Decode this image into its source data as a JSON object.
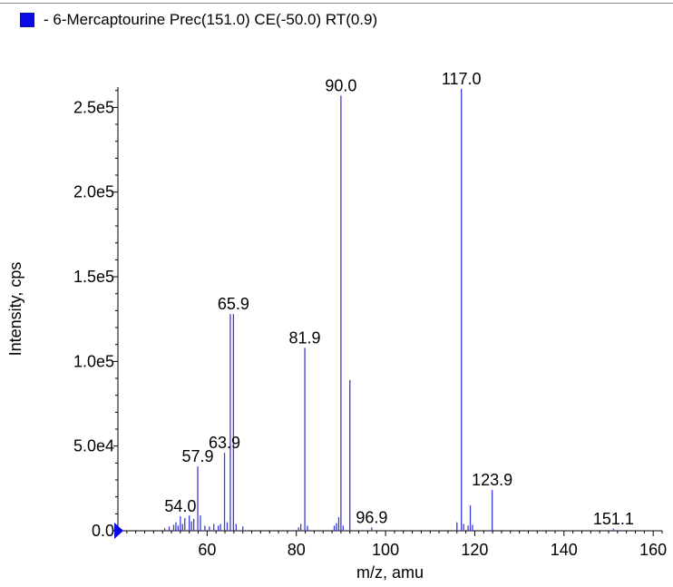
{
  "legend": {
    "label": "- 6-Mercaptourine Prec(151.0) CE(-50.0) RT(0.9)",
    "swatch_color": "#0a0ae6"
  },
  "colors": {
    "series": "#3a3ad8",
    "axis": "#000000",
    "marker": "#0a0ae6"
  },
  "chart_data": {
    "type": "bar",
    "title": "",
    "xlabel": "m/z, amu",
    "ylabel": "Intensity, cps",
    "xlim": [
      40,
      162
    ],
    "ylim": [
      0,
      262000
    ],
    "x_ticks": [
      60,
      80,
      100,
      120,
      140,
      160
    ],
    "x_tick_labels": [
      "60",
      "80",
      "100",
      "120",
      "140",
      "160"
    ],
    "y_ticks": [
      0,
      50000,
      100000,
      150000,
      200000,
      250000
    ],
    "y_tick_labels": [
      "0.0",
      "5.0e4",
      "1.0e5",
      "1.5e5",
      "2.0e5",
      "2.5e5"
    ],
    "grid": false,
    "legend_position": "top-left",
    "series": [
      {
        "name": "6-Mercaptourine Prec(151.0) CE(-50.0) RT(0.9)",
        "x": [
          50.5,
          51.5,
          52.5,
          53.0,
          53.5,
          54.0,
          54.5,
          55.0,
          56.0,
          56.5,
          57.0,
          57.9,
          58.5,
          59.5,
          60.5,
          61.5,
          62.5,
          63.0,
          63.9,
          64.5,
          65.2,
          65.9,
          66.5,
          68.0,
          80.5,
          81.0,
          81.9,
          82.5,
          88.5,
          89.0,
          89.5,
          90.0,
          90.5,
          92.0,
          96.9,
          116.0,
          117.0,
          117.5,
          118.5,
          119.0,
          119.5,
          123.9,
          151.1
        ],
        "y": [
          1500,
          2500,
          3500,
          5000,
          3000,
          8500,
          4000,
          7500,
          9000,
          5500,
          7000,
          38000,
          9000,
          3000,
          2500,
          4000,
          3000,
          4000,
          46000,
          5000,
          128000,
          128000,
          4000,
          2500,
          2000,
          4000,
          108000,
          3000,
          3000,
          4500,
          8000,
          257000,
          3000,
          89000,
          2000,
          5000,
          261000,
          4000,
          3000,
          15000,
          3500,
          24000,
          1200
        ]
      }
    ],
    "annotations": [
      {
        "text": "117.0",
        "x": 117.0,
        "y": 261000
      },
      {
        "text": "90.0",
        "x": 90.0,
        "y": 257000
      },
      {
        "text": "65.9",
        "x": 65.9,
        "y": 128000
      },
      {
        "text": "81.9",
        "x": 81.9,
        "y": 108000
      },
      {
        "text": "63.9",
        "x": 63.9,
        "y": 46000
      },
      {
        "text": "57.9",
        "x": 57.9,
        "y": 38000
      },
      {
        "text": "123.9",
        "x": 123.9,
        "y": 24000
      },
      {
        "text": "54.0",
        "x": 54.0,
        "y": 8500
      },
      {
        "text": "96.9",
        "x": 96.9,
        "y": 2000
      },
      {
        "text": "151.1",
        "x": 151.1,
        "y": 1200
      }
    ]
  }
}
